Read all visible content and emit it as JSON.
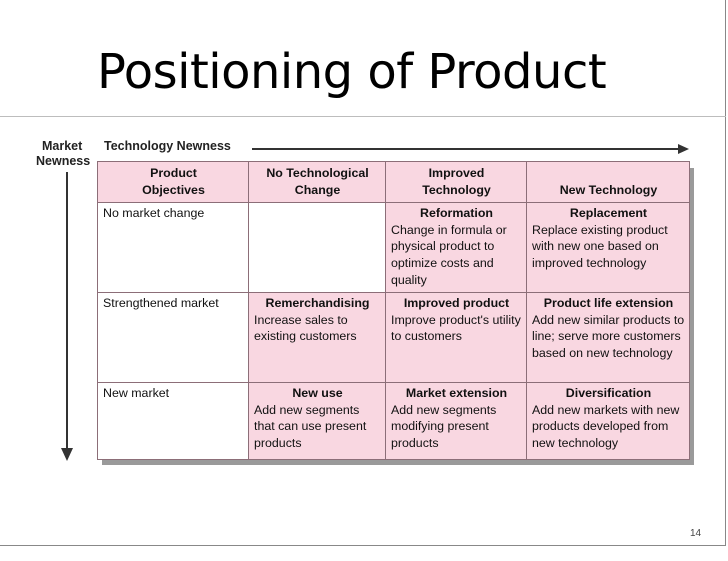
{
  "slide": {
    "title": "Positioning of Product",
    "page_number": "14"
  },
  "axes": {
    "horizontal_label": "Technology Newness",
    "vertical_label_line1": "Market",
    "vertical_label_line2": "Newness"
  },
  "table": {
    "header": {
      "col1_line1": "Product",
      "col1_line2": "Objectives",
      "col2_line1": "No Technological",
      "col2_line2": "Change",
      "col3_line1": "Improved",
      "col3_line2": "Technology",
      "col4": "New Technology"
    },
    "rows": [
      {
        "label": "No market change",
        "cells": [
          {
            "title": "",
            "text": ""
          },
          {
            "title": "Reformation",
            "text": "Change in formula or physical product to optimize costs and quality"
          },
          {
            "title": "Replacement",
            "text": "Replace existing product with new one based on improved technology"
          }
        ]
      },
      {
        "label": "Strengthened market",
        "cells": [
          {
            "title": "Remerchandising",
            "text": "Increase sales to existing customers"
          },
          {
            "title": "Improved product",
            "text": "Improve product's utility to customers"
          },
          {
            "title": "Product life extension",
            "text": "Add new similar products to line; serve more customers based on new technology"
          }
        ]
      },
      {
        "label": "New market",
        "cells": [
          {
            "title": "New use",
            "text": "Add new segments that can use present products"
          },
          {
            "title": "Market extension",
            "text": "Add new segments modifying present products"
          },
          {
            "title": "Diversification",
            "text": "Add new markets with new products developed from new technology"
          }
        ]
      }
    ]
  }
}
